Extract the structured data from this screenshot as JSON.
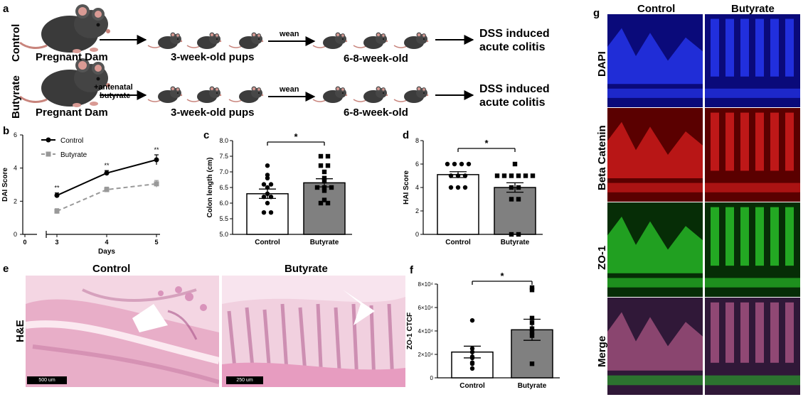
{
  "panel_a": {
    "letter": "a",
    "rows": [
      {
        "label": "Control",
        "dam": "Pregnant Dam",
        "treatment": "",
        "pups": "3-week-old pups",
        "wean": "wean",
        "adult": "6-8-week-old",
        "outcome_line1": "DSS induced",
        "outcome_line2": "acute colitis"
      },
      {
        "label": "Butyrate",
        "dam": "Pregnant Dam",
        "treatment_line1": "+antenatal",
        "treatment_line2": "butyrate",
        "pups": "3-week-old pups",
        "wean": "wean",
        "adult": "6-8-week-old",
        "outcome_line1": "DSS induced",
        "outcome_line2": "acute colitis"
      }
    ]
  },
  "panel_e": {
    "letter": "e",
    "titles": [
      "Control",
      "Butyrate"
    ],
    "row_label": "H&E",
    "scalebars": [
      "500 um",
      "250 um"
    ]
  },
  "panel_g": {
    "letter": "g",
    "columns": [
      "Control",
      "Butyrate"
    ],
    "rows": [
      "DAPI",
      "Beta Catenin",
      "ZO-1",
      "Merge"
    ],
    "colors": {
      "DAPI": "#1a2bd6",
      "Beta Catenin": "#d01818",
      "ZO-1": "#22b022",
      "Merge": "#8a4a6a"
    }
  },
  "chart_data": [
    {
      "panel": "b",
      "type": "line",
      "xlabel": "Days",
      "ylabel": "DAI Score",
      "x": [
        3,
        4,
        5
      ],
      "xticks": [
        "0",
        "3",
        "4",
        "5"
      ],
      "ylim": [
        0,
        6
      ],
      "yticks": [
        "0",
        "2",
        "4",
        "6"
      ],
      "series": [
        {
          "name": "Control",
          "values": [
            2.35,
            3.7,
            4.5
          ],
          "errors": [
            0.15,
            0.15,
            0.3
          ],
          "color": "#000000",
          "style": "solid"
        },
        {
          "name": "Butyrate",
          "values": [
            1.4,
            2.7,
            3.05
          ],
          "errors": [
            0.15,
            0.15,
            0.2
          ],
          "color": "#999999",
          "style": "dashed"
        }
      ],
      "annotations": [
        "**",
        "**",
        "**"
      ],
      "legend": "top-left"
    },
    {
      "panel": "c",
      "type": "bar",
      "ylabel": "Colon length (cm)",
      "categories": [
        "Control",
        "Butyrate"
      ],
      "values": [
        6.3,
        6.65
      ],
      "errors": [
        0.15,
        0.13
      ],
      "ylim": [
        5.0,
        8.0
      ],
      "yticks": [
        "5.0",
        "5.5",
        "6.0",
        "6.5",
        "7.0",
        "7.5",
        "8.0"
      ],
      "points": [
        [
          6.0,
          6.2,
          6.3,
          5.7,
          5.7,
          6.5,
          6.9,
          6.8,
          6.6,
          6.6,
          7.2,
          6.2
        ],
        [
          6.1,
          6.4,
          6.5,
          6.5,
          6.5,
          6.7,
          7.0,
          7.2,
          7.2,
          7.5,
          7.5,
          6.0,
          6.0,
          6.8
        ]
      ],
      "bar_colors": [
        "#ffffff",
        "#808080"
      ],
      "significance": "*"
    },
    {
      "panel": "d",
      "type": "bar",
      "ylabel": "HAI Score",
      "categories": [
        "Control",
        "Butyrate"
      ],
      "values": [
        5.1,
        4.0
      ],
      "errors": [
        0.25,
        0.4
      ],
      "ylim": [
        0,
        8
      ],
      "yticks": [
        "0",
        "2",
        "4",
        "6",
        "8"
      ],
      "points": [
        [
          6,
          6,
          6,
          6,
          5,
          5,
          5,
          4,
          4,
          4
        ],
        [
          6,
          5,
          5,
          5,
          5,
          5,
          5,
          4,
          4,
          3,
          3,
          0,
          0
        ]
      ],
      "bar_colors": [
        "#ffffff",
        "#808080"
      ],
      "significance": "*"
    },
    {
      "panel": "f",
      "type": "bar",
      "ylabel": "ZO-1 CTCF",
      "categories": [
        "Control",
        "Butyrate"
      ],
      "values": [
        22000,
        41000
      ],
      "errors": [
        5000,
        9000
      ],
      "ylim": [
        0,
        80000
      ],
      "yticks": [
        "0",
        "2×10⁴",
        "4×10⁴",
        "6×10⁴",
        "8×10⁴"
      ],
      "points": [
        [
          49000,
          25000,
          22000,
          18000,
          17000,
          13000,
          12000,
          8000
        ],
        [
          77000,
          75000,
          51000,
          47000,
          42000,
          39000,
          36000,
          12000
        ]
      ],
      "bar_colors": [
        "#ffffff",
        "#808080"
      ],
      "significance": "*"
    }
  ]
}
